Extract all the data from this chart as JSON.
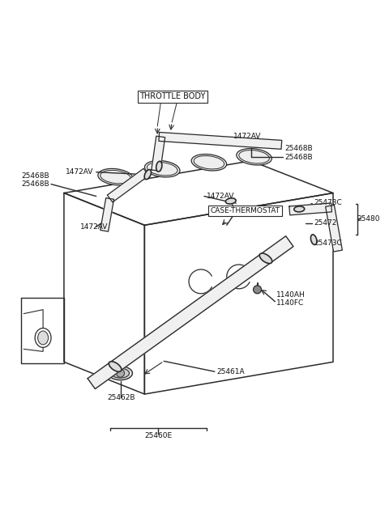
{
  "bg_color": "#ffffff",
  "line_color": "#2a2a2a",
  "text_color": "#111111",
  "fig_width": 4.8,
  "fig_height": 6.55,
  "dpi": 100,
  "labels": {
    "throttle_body": "THROTTLE BODY",
    "case_thermostat": "CASE-THERMOSTAT",
    "1472AV_top": "1472AV",
    "1472AV_left": "1472AV",
    "1472AV_mid": "1472AV",
    "1472AV_mid2": "1472AV",
    "25468B_right": "25468B\n25468B",
    "25468B_left": "25468B\n25468B",
    "25473C_top": "25473C",
    "25473C_bot": "25473C",
    "25472": "25472",
    "25480": "25480",
    "1140AH": "1140AH\n1140FC",
    "25461A": "25461A",
    "25462B": "25462B",
    "25460E": "25460E"
  }
}
